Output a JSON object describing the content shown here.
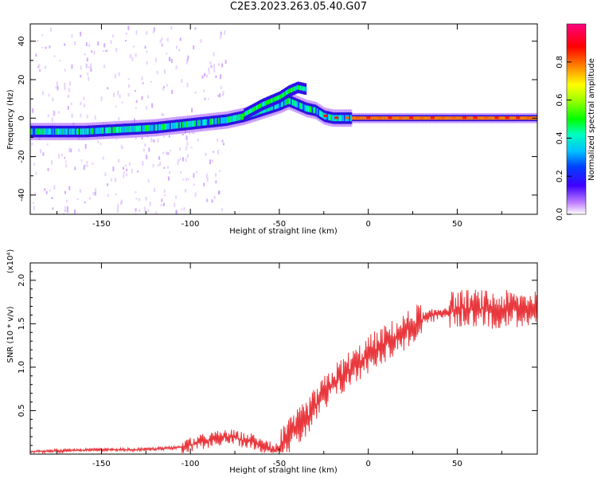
{
  "title": "C2E3.2023.263.05.40.G07",
  "chart_data": [
    {
      "type": "heatmap",
      "xlabel": "Height of straight line (km)",
      "ylabel": "Frequency (Hz)",
      "xlim": [
        -190,
        95
      ],
      "ylim": [
        -50,
        49
      ],
      "xticks": [
        -150,
        -100,
        -50,
        0,
        50
      ],
      "yticks": [
        -40,
        -20,
        0,
        20,
        40
      ],
      "colorbar": {
        "label": "Normalized spectral amplitude",
        "range": [
          0.0,
          1.0
        ],
        "ticks": [
          0.0,
          0.2,
          0.4,
          0.6,
          0.8
        ]
      },
      "ridge": {
        "description_points_x": [
          -190,
          -160,
          -140,
          -120,
          -100,
          -80,
          -70,
          -60,
          -50,
          -45,
          -40,
          -35,
          -30,
          -25,
          -20,
          -10,
          0,
          20,
          50,
          95
        ],
        "description_points_y": [
          -7,
          -7,
          -6,
          -5,
          -3,
          -1,
          1,
          4,
          7,
          9,
          7,
          5,
          4,
          1,
          0,
          0,
          0,
          0,
          0,
          0
        ]
      },
      "branch": {
        "x": [
          -70,
          -60,
          -50,
          -45,
          -40,
          -35
        ],
        "y": [
          2,
          7,
          11,
          14,
          16,
          15
        ]
      }
    },
    {
      "type": "line",
      "xlabel": "Height of straight line (km)",
      "ylabel": "SNR (10 * v/v)",
      "y_multiplier": "(x10⁴)",
      "xlim": [
        -190,
        95
      ],
      "ylim": [
        0,
        2.2
      ],
      "xticks": [
        -150,
        -100,
        -50,
        0,
        50
      ],
      "yticks": [
        0.5,
        1.0,
        1.5,
        2.0
      ],
      "color": "#e8383d",
      "envelope": {
        "x": [
          -190,
          -170,
          -150,
          -130,
          -110,
          -100,
          -92,
          -85,
          -78,
          -72,
          -65,
          -58,
          -52,
          -48,
          -42,
          -35,
          -28,
          -20,
          -12,
          -5,
          0,
          10,
          20,
          30,
          40,
          50,
          60,
          70,
          80,
          90,
          95
        ],
        "y": [
          0.03,
          0.04,
          0.05,
          0.05,
          0.07,
          0.1,
          0.15,
          0.18,
          0.2,
          0.17,
          0.15,
          0.07,
          0.04,
          0.1,
          0.25,
          0.4,
          0.6,
          0.8,
          0.95,
          1.05,
          1.15,
          1.28,
          1.4,
          1.55,
          1.62,
          1.67,
          1.68,
          1.66,
          1.67,
          1.68,
          1.7
        ]
      }
    }
  ]
}
